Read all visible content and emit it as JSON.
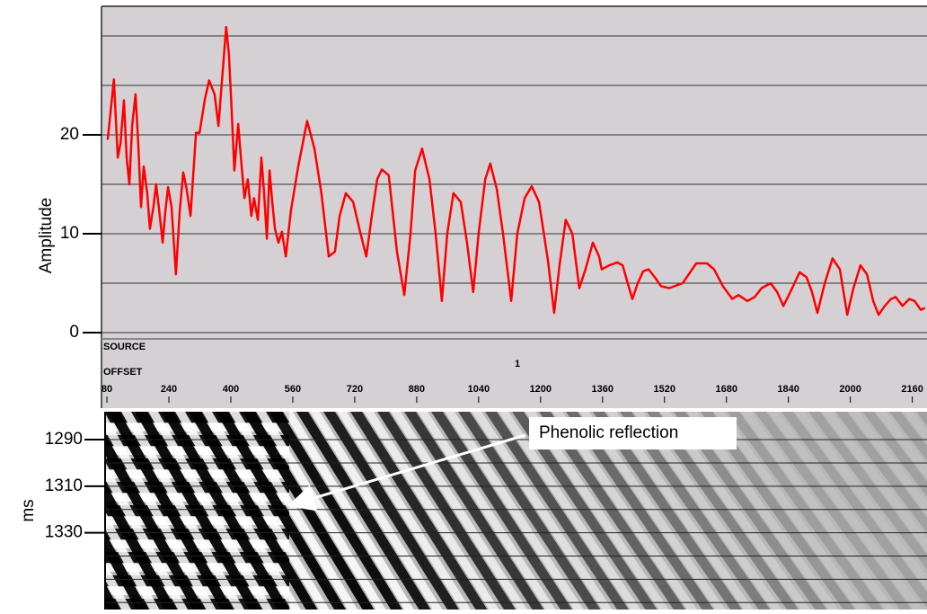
{
  "chart_data": [
    {
      "type": "line",
      "ylabel": "Amplitude",
      "xlabel": "OFFSET",
      "source_label": "SOURCE",
      "source_value": "1",
      "color": "#ff0000",
      "grid": true,
      "xlim": [
        66,
        2198
      ],
      "ylim": [
        0,
        33
      ],
      "xticks": [
        80,
        240,
        400,
        560,
        720,
        880,
        1040,
        1200,
        1360,
        1520,
        1680,
        1840,
        2000,
        2160
      ],
      "yticks": [
        0,
        10,
        20
      ],
      "ygrid": [
        0,
        5,
        10,
        15,
        20,
        25,
        30
      ],
      "x": [
        82,
        98,
        108,
        115,
        124,
        131,
        138,
        145,
        154,
        161,
        168,
        175,
        184,
        191,
        200,
        207,
        214,
        224,
        231,
        238,
        247,
        258,
        268,
        277,
        286,
        296,
        310,
        319,
        333,
        344,
        358,
        368,
        379,
        388,
        395,
        402,
        409,
        419,
        426,
        435,
        444,
        453,
        460,
        470,
        479,
        486,
        493,
        500,
        507,
        514,
        523,
        532,
        542,
        555,
        574,
        597,
        616,
        634,
        653,
        669,
        681,
        697,
        716,
        732,
        750,
        764,
        778,
        790,
        808,
        829,
        848,
        864,
        876,
        894,
        913,
        929,
        945,
        959,
        975,
        994,
        1010,
        1026,
        1040,
        1057,
        1070,
        1087,
        1103,
        1124,
        1140,
        1159,
        1177,
        1196,
        1219,
        1235,
        1249,
        1265,
        1282,
        1300,
        1316,
        1335,
        1351,
        1358,
        1377,
        1398,
        1412,
        1425,
        1437,
        1451,
        1465,
        1479,
        1497,
        1511,
        1532,
        1567,
        1602,
        1630,
        1648,
        1671,
        1695,
        1711,
        1734,
        1753,
        1771,
        1794,
        1811,
        1827,
        1845,
        1869,
        1887,
        1901,
        1915,
        1934,
        1954,
        1973,
        1992,
        2008,
        2026,
        2043,
        2059,
        2073,
        2089,
        2105,
        2117,
        2135,
        2152,
        2166,
        2182,
        2193
      ],
      "values": [
        19.5,
        25.6,
        17.7,
        19.1,
        23.5,
        17.7,
        15.0,
        20.9,
        24.1,
        19.1,
        12.7,
        16.8,
        14.1,
        10.5,
        12.7,
        15.0,
        12.7,
        9.1,
        12.3,
        14.7,
        12.7,
        5.9,
        12.3,
        16.2,
        14.5,
        11.8,
        20.2,
        20.2,
        23.6,
        25.5,
        24.1,
        20.9,
        26.4,
        30.9,
        28.2,
        22.7,
        16.4,
        21.1,
        17.7,
        13.6,
        15.5,
        11.8,
        13.6,
        11.4,
        17.7,
        14.1,
        9.5,
        16.4,
        13.2,
        10.5,
        9.1,
        10.2,
        7.7,
        12.3,
        16.8,
        21.4,
        18.6,
        14.1,
        7.7,
        8.2,
        11.8,
        14.1,
        13.2,
        10.5,
        7.7,
        11.8,
        15.5,
        16.5,
        15.9,
        8.2,
        3.8,
        10.0,
        16.4,
        18.6,
        15.5,
        10.0,
        3.2,
        10.0,
        14.1,
        13.2,
        9.1,
        4.1,
        10.0,
        15.5,
        17.1,
        14.5,
        10.0,
        3.2,
        10.0,
        13.6,
        14.8,
        13.2,
        7.3,
        2.0,
        6.8,
        11.4,
        10.0,
        4.5,
        6.4,
        9.1,
        7.7,
        6.4,
        6.8,
        7.1,
        6.8,
        5.0,
        3.4,
        5.0,
        6.2,
        6.4,
        5.5,
        4.7,
        4.5,
        5.0,
        7.0,
        7.0,
        6.4,
        4.7,
        3.4,
        3.8,
        3.2,
        3.6,
        4.5,
        5.0,
        4.1,
        2.7,
        4.1,
        6.1,
        5.6,
        4.1,
        2.0,
        5.0,
        7.5,
        6.4,
        1.8,
        4.5,
        6.8,
        5.9,
        3.2,
        1.8,
        2.7,
        3.4,
        3.6,
        2.7,
        3.4,
        3.2,
        2.3,
        2.5
      ]
    },
    {
      "type": "image",
      "ylabel": "ms",
      "annotation": "Phenolic reflection",
      "ylim": [
        1278,
        1363
      ],
      "yticks": [
        1290,
        1310,
        1330
      ],
      "ygrid": [
        1290,
        1300,
        1310,
        1320,
        1330,
        1340,
        1350,
        1360
      ]
    }
  ]
}
